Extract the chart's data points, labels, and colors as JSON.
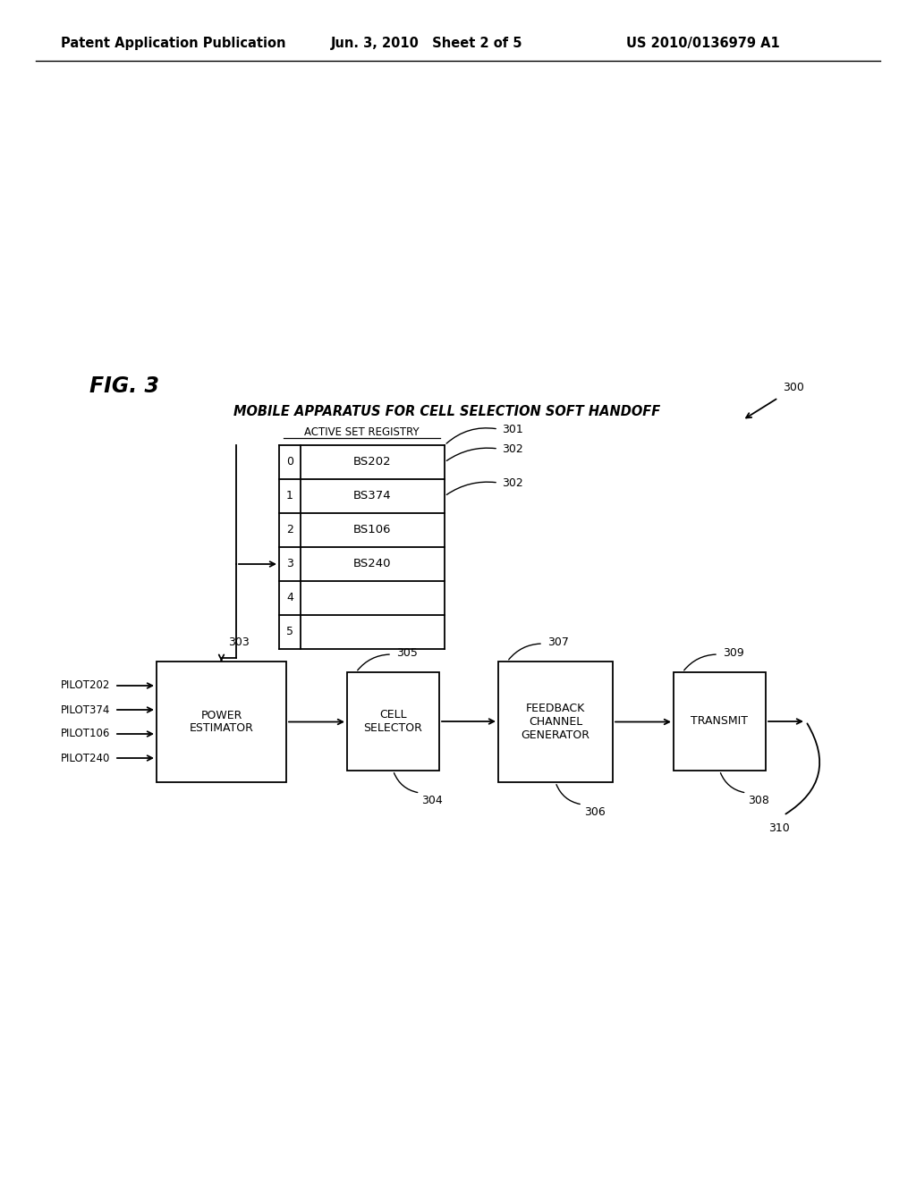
{
  "bg_color": "#ffffff",
  "header_left": "Patent Application Publication",
  "header_mid": "Jun. 3, 2010   Sheet 2 of 5",
  "header_right": "US 2010/0136979 A1",
  "fig_label": "FIG. 3",
  "diagram_title": "MOBILE APPARATUS FOR CELL SELECTION SOFT HANDOFF",
  "ref_300": "300",
  "registry_label": "ACTIVE SET REGISTRY",
  "registry_rows": [
    "BS202",
    "BS374",
    "BS106",
    "BS240",
    "",
    ""
  ],
  "registry_indices": [
    "0",
    "1",
    "2",
    "3",
    "4",
    "5"
  ],
  "ref_301": "301",
  "ref_302a": "302",
  "ref_302b": "302",
  "ref_303": "303",
  "ref_304": "304",
  "ref_305": "305",
  "ref_306": "306",
  "ref_307": "307",
  "ref_308": "308",
  "ref_309": "309",
  "ref_310": "310",
  "box_power_label": "POWER\nESTIMATOR",
  "box_cell_label": "CELL\nSELECTOR",
  "box_feedback_label": "FEEDBACK\nCHANNEL\nGENERATOR",
  "box_transmit_label": "TRANSMIT",
  "pilots": [
    "PILOT202",
    "PILOT374",
    "PILOT106",
    "PILOT240"
  ]
}
